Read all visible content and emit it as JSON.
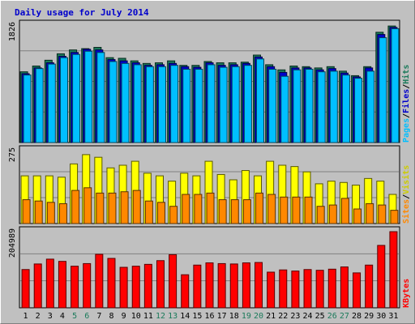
{
  "chart_data": {
    "type": "bar",
    "title": "Daily usage for July 2014",
    "categories": [
      "1",
      "2",
      "3",
      "4",
      "5",
      "6",
      "7",
      "8",
      "9",
      "10",
      "11",
      "12",
      "13",
      "14",
      "15",
      "16",
      "17",
      "18",
      "19",
      "20",
      "21",
      "22",
      "23",
      "24",
      "25",
      "26",
      "27",
      "28",
      "29",
      "30",
      "31"
    ],
    "weekend_days": [
      "5",
      "6",
      "12",
      "13",
      "19",
      "20",
      "26",
      "27"
    ],
    "panels": [
      {
        "name": "hits-files-pages",
        "ymax_label": "1826",
        "ymax": 1826,
        "side_label": [
          "Pages",
          "/",
          "Files",
          "/",
          "Hits"
        ],
        "series": [
          {
            "name": "Hits",
            "color": "#1a7a5a",
            "values": [
              1100,
              1190,
              1280,
              1380,
              1440,
              1460,
              1480,
              1320,
              1310,
              1270,
              1230,
              1240,
              1270,
              1200,
              1200,
              1260,
              1240,
              1240,
              1250,
              1360,
              1210,
              1130,
              1190,
              1180,
              1160,
              1180,
              1110,
              1040,
              1180,
              1715,
              1812
            ]
          },
          {
            "name": "Files",
            "color": "#0000cc",
            "values": [
              1070,
              1160,
              1240,
              1340,
              1400,
              1450,
              1440,
              1290,
              1270,
              1240,
              1200,
              1210,
              1230,
              1180,
              1170,
              1240,
              1200,
              1210,
              1230,
              1330,
              1180,
              1090,
              1160,
              1160,
              1130,
              1150,
              1080,
              1020,
              1160,
              1680,
              1790
            ]
          },
          {
            "name": "Pages",
            "color": "#00bfff",
            "values": [
              1050,
              1150,
              1220,
              1320,
              1370,
              1420,
              1400,
              1260,
              1230,
              1210,
              1180,
              1180,
              1200,
              1140,
              1140,
              1210,
              1170,
              1180,
              1200,
              1300,
              1140,
              1030,
              1130,
              1140,
              1100,
              1110,
              1050,
              1000,
              1110,
              1630,
              1770
            ]
          }
        ]
      },
      {
        "name": "visits-sites",
        "ymax_label": "275",
        "ymax": 275,
        "side_label": [
          "Sites",
          "/",
          "Visits"
        ],
        "series": [
          {
            "name": "Visits",
            "color": "#ffff00",
            "values": [
              180,
              180,
              180,
              175,
              225,
              260,
              250,
              210,
              220,
              235,
              190,
              180,
              160,
              190,
              180,
              235,
              185,
              165,
              200,
              180,
              235,
              220,
              215,
              195,
              150,
              160,
              155,
              145,
              170,
              160,
              110
            ]
          },
          {
            "name": "Sites",
            "color": "#ff8800",
            "values": [
              90,
              85,
              80,
              75,
              125,
              135,
              115,
              115,
              120,
              125,
              85,
              80,
              65,
              110,
              110,
              115,
              90,
              90,
              90,
              115,
              110,
              100,
              100,
              100,
              65,
              70,
              95,
              55,
              75,
              70,
              50
            ]
          }
        ]
      },
      {
        "name": "kbytes",
        "ymax_label": "204989",
        "ymax": 204989,
        "side_label": [
          "KBytes"
        ],
        "series": [
          {
            "name": "KBytes",
            "color": "#ff0000",
            "values": [
              103000,
              118000,
              131000,
              125000,
              112000,
              119000,
              144000,
              133000,
              109000,
              112000,
              117000,
              127000,
              143000,
              89000,
              115000,
              121000,
              119000,
              118000,
              121000,
              122000,
              96000,
              102000,
              99000,
              103000,
              101000,
              104000,
              110000,
              94000,
              115000,
              168000,
              204989
            ]
          }
        ]
      }
    ]
  }
}
